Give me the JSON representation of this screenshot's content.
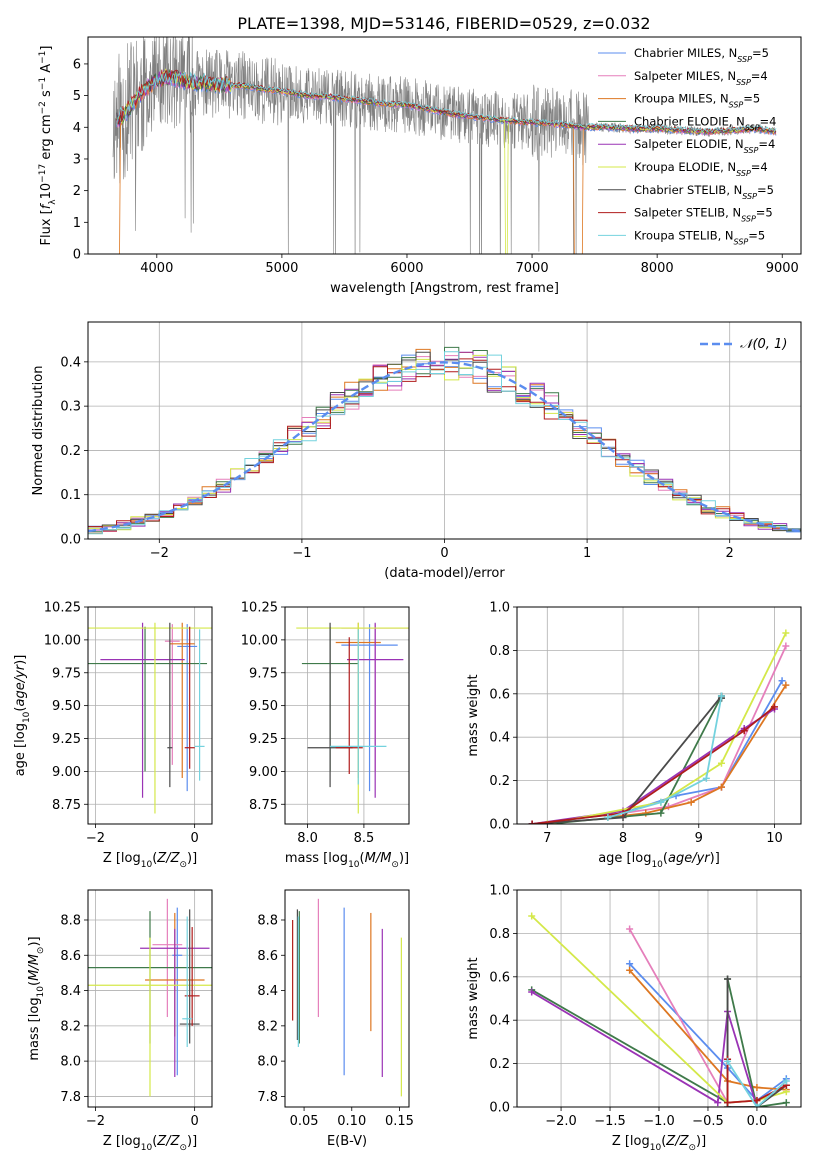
{
  "title": "PLATE=1398, MJD=53146, FIBERID=0529, z=0.032",
  "colors": {
    "s0": "#5b8def",
    "s1": "#e57fbb",
    "s2": "#dd7722",
    "s3": "#3f7a4a",
    "s4": "#9a33b5",
    "s5": "#d4e84a",
    "s6": "#4a4a4a",
    "s7": "#b01c1c",
    "s8": "#74d2de",
    "data": "#808080",
    "normal": "#5b8def"
  },
  "chart_data": [
    {
      "id": "spectrum",
      "type": "line",
      "xlabel": "wavelength [Angstrom, rest frame]",
      "ylabel": "Flux [fλ10⁻¹⁷ erg cm⁻² s⁻¹ A⁻¹]",
      "xlim": [
        3450,
        9150
      ],
      "ylim": [
        0,
        6.85
      ],
      "xticks": [
        4000,
        5000,
        6000,
        7000,
        8000,
        9000
      ],
      "yticks": [
        0,
        1,
        2,
        3,
        4,
        5,
        6
      ],
      "grid": false,
      "legend_position": "top-right",
      "legend": [
        {
          "base": "Chabrier MILES, N",
          "sub": "SSP",
          "eq": "=5"
        },
        {
          "base": "Salpeter MILES, N",
          "sub": "SSP",
          "eq": "=4"
        },
        {
          "base": "Kroupa MILES, N",
          "sub": "SSP",
          "eq": "=5"
        },
        {
          "base": "Chabrier ELODIE, N",
          "sub": "SSP",
          "eq": "=4"
        },
        {
          "base": "Salpeter ELODIE, N",
          "sub": "SSP",
          "eq": "=4"
        },
        {
          "base": "Kroupa ELODIE, N",
          "sub": "SSP",
          "eq": "=4"
        },
        {
          "base": "Chabrier STELIB, N",
          "sub": "SSP",
          "eq": "=5"
        },
        {
          "base": "Salpeter STELIB, N",
          "sub": "SSP",
          "eq": "=5"
        },
        {
          "base": "Kroupa STELIB, N",
          "sub": "SSP",
          "eq": "=5"
        }
      ],
      "continuum": [
        [
          3680,
          4.2
        ],
        [
          3760,
          4.5
        ],
        [
          3900,
          5.2
        ],
        [
          4000,
          5.5
        ],
        [
          4100,
          5.6
        ],
        [
          4300,
          5.4
        ],
        [
          4500,
          5.35
        ],
        [
          4700,
          5.3
        ],
        [
          4860,
          5.2
        ],
        [
          5000,
          5.15
        ],
        [
          5200,
          5.0
        ],
        [
          5400,
          4.95
        ],
        [
          5600,
          4.85
        ],
        [
          5800,
          4.75
        ],
        [
          6000,
          4.7
        ],
        [
          6200,
          4.55
        ],
        [
          6400,
          4.4
        ],
        [
          6600,
          4.3
        ],
        [
          6800,
          4.2
        ],
        [
          7000,
          4.15
        ],
        [
          7200,
          4.1
        ],
        [
          7400,
          4.0
        ],
        [
          7600,
          4.0
        ],
        [
          7800,
          3.95
        ],
        [
          8000,
          3.95
        ],
        [
          8200,
          3.9
        ],
        [
          8400,
          3.85
        ],
        [
          8600,
          3.9
        ],
        [
          8800,
          3.95
        ],
        [
          8950,
          3.85
        ]
      ],
      "data_noise": [
        [
          3650,
          3900,
          2.2
        ],
        [
          3900,
          4300,
          1.6
        ],
        [
          4300,
          5000,
          1.1
        ],
        [
          5000,
          6000,
          0.9
        ],
        [
          6000,
          7000,
          0.9
        ],
        [
          7000,
          7450,
          1.2
        ],
        [
          7450,
          8950,
          0.15
        ]
      ],
      "model_cutoffs": [
        {
          "series": 5,
          "from": 6790,
          "to": 6800
        },
        {
          "series": 2,
          "from": 7340,
          "to": 7400
        },
        {
          "series": 2,
          "from": 3680,
          "to": 3700
        }
      ]
    },
    {
      "id": "residuals",
      "type": "histogram",
      "xlabel": "(data-model)/error",
      "ylabel": "Normed distribution",
      "xlim": [
        -2.5,
        2.5
      ],
      "ylim": [
        0,
        0.49
      ],
      "xticks": [
        -2,
        -1,
        0,
        1,
        2
      ],
      "yticks": [
        0.0,
        0.1,
        0.2,
        0.3,
        0.4
      ],
      "grid": true,
      "bin_width": 0.1,
      "reference": {
        "name": "𝒩(0, 1)",
        "mean": 0,
        "sigma": 1
      },
      "legend_position": "top-right",
      "scatter_seed": 7
    },
    {
      "id": "age_vs_Z",
      "type": "errorbar",
      "xlabel": "Z [log10(Z/Z⊙)]",
      "ylabel": "age  [log10(age/yr)]",
      "xlim": [
        -2.15,
        0.35
      ],
      "ylim": [
        8.6,
        10.25
      ],
      "xticks": [
        -2,
        0
      ],
      "yticks": [
        8.75,
        9.0,
        9.25,
        9.5,
        9.75,
        10.0,
        10.25
      ],
      "grid": true,
      "points": [
        {
          "series": 0,
          "x": -0.15,
          "y": 9.95,
          "xerr": 0.2,
          "y0": 8.85,
          "y1": 10.12
        },
        {
          "series": 1,
          "x": -0.45,
          "y": 9.99,
          "xerr": 0.15,
          "y0": 9.05,
          "y1": 10.12
        },
        {
          "series": 2,
          "x": -0.25,
          "y": 9.97,
          "xerr": 0.25,
          "y0": 8.95,
          "y1": 10.13
        },
        {
          "series": 3,
          "x": -1.0,
          "y": 9.82,
          "xerr": 1.25,
          "y0": 9.0,
          "y1": 10.1
        },
        {
          "series": 4,
          "x": -1.05,
          "y": 9.85,
          "xerr": 0.85,
          "y0": 8.8,
          "y1": 10.13
        },
        {
          "series": 5,
          "x": -0.8,
          "y": 10.09,
          "xerr": 1.35,
          "y0": 8.68,
          "y1": 10.13
        },
        {
          "series": 6,
          "x": -0.5,
          "y": 9.18,
          "xerr": 0.05,
          "y0": 8.88,
          "y1": 10.13
        },
        {
          "series": 7,
          "x": -0.1,
          "y": 9.18,
          "xerr": 0.1,
          "y0": 9.02,
          "y1": 10.1
        },
        {
          "series": 8,
          "x": 0.1,
          "y": 9.19,
          "xerr": 0.1,
          "y0": 8.93,
          "y1": 10.08
        }
      ]
    },
    {
      "id": "age_vs_mass",
      "type": "errorbar",
      "xlabel": "mass [log10(M/M⊙)]",
      "ylabel": "",
      "xlim": [
        7.8,
        8.9
      ],
      "ylim": [
        8.6,
        10.25
      ],
      "xticks": [
        8.0,
        8.5
      ],
      "yticks": [
        8.75,
        9.0,
        9.25,
        9.5,
        9.75,
        10.0,
        10.25
      ],
      "grid": true,
      "points": [
        {
          "series": 0,
          "x": 8.55,
          "y": 9.96,
          "xerr": 0.25,
          "y0": 8.85,
          "y1": 10.12
        },
        {
          "series": 1,
          "x": 8.6,
          "y": 10.09,
          "xerr": 0.3,
          "y0": 9.0,
          "y1": 10.12
        },
        {
          "series": 2,
          "x": 8.45,
          "y": 9.98,
          "xerr": 0.2,
          "y0": 8.95,
          "y1": 10.13
        },
        {
          "series": 3,
          "x": 8.2,
          "y": 9.82,
          "xerr": 0.25,
          "y0": 9.0,
          "y1": 10.1
        },
        {
          "series": 4,
          "x": 8.6,
          "y": 9.85,
          "xerr": 0.25,
          "y0": 8.8,
          "y1": 10.13
        },
        {
          "series": 5,
          "x": 8.45,
          "y": 10.09,
          "xerr": 0.55,
          "y0": 8.68,
          "y1": 10.13
        },
        {
          "series": 6,
          "x": 8.2,
          "y": 9.18,
          "xerr": 0.2,
          "y0": 8.88,
          "y1": 10.13
        },
        {
          "series": 7,
          "x": 8.37,
          "y": 9.18,
          "xerr": 0.12,
          "y0": 8.98,
          "y1": 10.02
        },
        {
          "series": 8,
          "x": 8.45,
          "y": 9.19,
          "xerr": 0.25,
          "y0": 8.9,
          "y1": 10.08
        }
      ]
    },
    {
      "id": "mass_weight_vs_age",
      "type": "line",
      "xlabel": "age  [log10(age/yr)]",
      "ylabel": "mass weight",
      "xlim": [
        6.6,
        10.35
      ],
      "ylim": [
        0,
        1.0
      ],
      "xticks": [
        7,
        8,
        9,
        10
      ],
      "yticks": [
        0.0,
        0.2,
        0.4,
        0.6,
        0.8,
        1.0
      ],
      "grid": true,
      "series": [
        {
          "series": 0,
          "points": [
            [
              6.8,
              0.0
            ],
            [
              8.0,
              0.05
            ],
            [
              8.7,
              0.13
            ],
            [
              9.3,
              0.17
            ],
            [
              10.1,
              0.66
            ]
          ]
        },
        {
          "series": 1,
          "points": [
            [
              8.0,
              0.05
            ],
            [
              8.6,
              0.08
            ],
            [
              9.3,
              0.17
            ],
            [
              10.15,
              0.82
            ]
          ]
        },
        {
          "series": 2,
          "points": [
            [
              7.8,
              0.03
            ],
            [
              8.3,
              0.05
            ],
            [
              8.9,
              0.1
            ],
            [
              9.3,
              0.17
            ],
            [
              10.15,
              0.64
            ]
          ]
        },
        {
          "series": 3,
          "points": [
            [
              7.0,
              0.0
            ],
            [
              8.5,
              0.05
            ],
            [
              9.3,
              0.59
            ],
            [
              9.3,
              0.58
            ]
          ]
        },
        {
          "series": 4,
          "points": [
            [
              6.8,
              0.0
            ],
            [
              8.0,
              0.06
            ],
            [
              9.6,
              0.44
            ],
            [
              10.0,
              0.53
            ]
          ]
        },
        {
          "series": 5,
          "points": [
            [
              7.0,
              0.0
            ],
            [
              8.5,
              0.1
            ],
            [
              9.3,
              0.28
            ],
            [
              10.15,
              0.88
            ]
          ]
        },
        {
          "series": 6,
          "points": [
            [
              6.8,
              0.0
            ],
            [
              8.0,
              0.03
            ],
            [
              9.3,
              0.59
            ],
            [
              9.3,
              0.58
            ]
          ]
        },
        {
          "series": 7,
          "points": [
            [
              6.8,
              0.0
            ],
            [
              8.0,
              0.05
            ],
            [
              9.6,
              0.43
            ],
            [
              10.0,
              0.54
            ]
          ]
        },
        {
          "series": 8,
          "points": [
            [
              7.8,
              0.03
            ],
            [
              8.5,
              0.1
            ],
            [
              9.1,
              0.21
            ],
            [
              9.3,
              0.59
            ]
          ]
        }
      ]
    },
    {
      "id": "mass_vs_Z",
      "type": "errorbar",
      "xlabel": "Z [log10(Z/Z⊙)]",
      "ylabel": "mass [log10(M/M⊙)]",
      "xlim": [
        -2.15,
        0.35
      ],
      "ylim": [
        7.74,
        8.97
      ],
      "xticks": [
        -2,
        0
      ],
      "yticks": [
        7.8,
        8.0,
        8.2,
        8.4,
        8.6,
        8.8
      ],
      "grid": true,
      "points": [
        {
          "series": 0,
          "x": -0.35,
          "y": 8.6,
          "xerr": 0.1,
          "y0": 7.92,
          "y1": 8.87
        },
        {
          "series": 1,
          "x": -0.55,
          "y": 8.66,
          "xerr": 0.3,
          "y0": 8.25,
          "y1": 8.92
        },
        {
          "series": 2,
          "x": -0.4,
          "y": 8.46,
          "xerr": 0.6,
          "y0": 8.14,
          "y1": 8.84
        },
        {
          "series": 3,
          "x": -0.9,
          "y": 8.53,
          "xerr": 1.3,
          "y0": 8.1,
          "y1": 8.85
        },
        {
          "series": 4,
          "x": -0.4,
          "y": 8.64,
          "xerr": 0.7,
          "y0": 7.91,
          "y1": 8.75
        },
        {
          "series": 5,
          "x": -0.9,
          "y": 8.43,
          "xerr": 1.3,
          "y0": 7.8,
          "y1": 8.7
        },
        {
          "series": 6,
          "x": -0.1,
          "y": 8.21,
          "xerr": 0.2,
          "y0": 8.1,
          "y1": 8.86
        },
        {
          "series": 7,
          "x": -0.05,
          "y": 8.37,
          "xerr": 0.15,
          "y0": 8.2,
          "y1": 8.76
        },
        {
          "series": 8,
          "x": -0.15,
          "y": 8.24,
          "xerr": 0.1,
          "y0": 8.08,
          "y1": 8.82
        }
      ]
    },
    {
      "id": "mass_vs_ebv",
      "type": "errorbar",
      "xlabel": "E(B-V)",
      "ylabel": "",
      "xlim": [
        0.03,
        0.16
      ],
      "ylim": [
        7.74,
        8.97
      ],
      "xticks": [
        0.05,
        0.1,
        0.15
      ],
      "yticks": [
        7.8,
        8.0,
        8.2,
        8.4,
        8.6,
        8.8
      ],
      "grid": false,
      "points": [
        {
          "series": 0,
          "x": 0.092,
          "y0": 7.92,
          "y1": 8.87
        },
        {
          "series": 1,
          "x": 0.065,
          "y0": 8.25,
          "y1": 8.92
        },
        {
          "series": 2,
          "x": 0.12,
          "y0": 8.17,
          "y1": 8.84
        },
        {
          "series": 3,
          "x": 0.045,
          "y0": 8.1,
          "y1": 8.85
        },
        {
          "series": 4,
          "x": 0.132,
          "y0": 7.91,
          "y1": 8.75
        },
        {
          "series": 5,
          "x": 0.152,
          "y0": 7.8,
          "y1": 8.7
        },
        {
          "series": 6,
          "x": 0.043,
          "y0": 8.12,
          "y1": 8.86
        },
        {
          "series": 7,
          "x": 0.038,
          "y0": 8.23,
          "y1": 8.8
        },
        {
          "series": 8,
          "x": 0.044,
          "y0": 8.08,
          "y1": 8.82
        }
      ]
    },
    {
      "id": "mass_weight_vs_Z",
      "type": "line",
      "xlabel": "Z [log10(Z/Z⊙)]",
      "ylabel": "mass weight",
      "xlim": [
        -2.45,
        0.45
      ],
      "ylim": [
        0,
        1.0
      ],
      "xticks": [
        -2.0,
        -1.5,
        -1.0,
        -0.5,
        0.0
      ],
      "yticks": [
        0.0,
        0.2,
        0.4,
        0.6,
        0.8,
        1.0
      ],
      "grid": true,
      "series": [
        {
          "series": 0,
          "points": [
            [
              -1.3,
              0.66
            ],
            [
              -0.3,
              0.18
            ],
            [
              0.0,
              0.03
            ],
            [
              0.3,
              0.13
            ]
          ]
        },
        {
          "series": 1,
          "points": [
            [
              -1.3,
              0.82
            ],
            [
              -0.3,
              0.02
            ],
            [
              0.0,
              0.03
            ],
            [
              0.3,
              0.1
            ]
          ]
        },
        {
          "series": 2,
          "points": [
            [
              -1.3,
              0.63
            ],
            [
              -0.3,
              0.12
            ],
            [
              0.0,
              0.09
            ],
            [
              0.3,
              0.08
            ]
          ]
        },
        {
          "series": 3,
          "points": [
            [
              -2.3,
              0.54
            ],
            [
              -0.3,
              0.02
            ],
            [
              -0.3,
              0.59
            ],
            [
              0.0,
              0.0
            ],
            [
              0.3,
              0.02
            ]
          ]
        },
        {
          "series": 4,
          "points": [
            [
              -2.3,
              0.53
            ],
            [
              -0.4,
              0.02
            ],
            [
              -0.3,
              0.44
            ],
            [
              0.0,
              0.0
            ]
          ]
        },
        {
          "series": 5,
          "points": [
            [
              -2.3,
              0.88
            ],
            [
              -0.3,
              0.02
            ],
            [
              0.0,
              0.03
            ],
            [
              0.3,
              0.07
            ]
          ]
        },
        {
          "series": 6,
          "points": [
            [
              -0.3,
              0.59
            ],
            [
              -0.3,
              0.0
            ],
            [
              0.0,
              0.0
            ],
            [
              0.3,
              0.1
            ]
          ]
        },
        {
          "series": 7,
          "points": [
            [
              -0.3,
              0.22
            ],
            [
              -0.3,
              0.02
            ],
            [
              0.0,
              0.03
            ],
            [
              0.3,
              0.1
            ]
          ]
        },
        {
          "series": 8,
          "points": [
            [
              -0.3,
              0.21
            ],
            [
              0.0,
              0.0
            ],
            [
              0.3,
              0.12
            ]
          ]
        }
      ]
    }
  ]
}
